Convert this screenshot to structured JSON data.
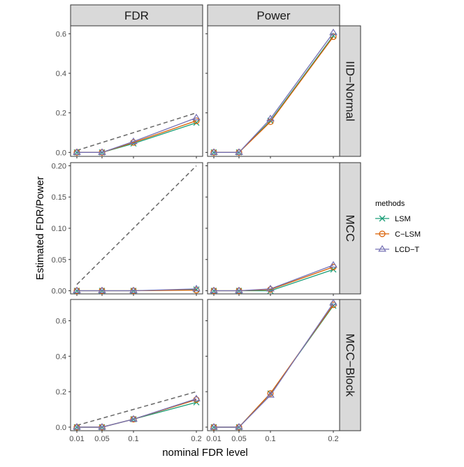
{
  "chart_data": {
    "type": "line",
    "xlabel": "nominal FDR level",
    "ylabel": "Estimated FDR/Power",
    "x": [
      0.01,
      0.05,
      0.1,
      0.2
    ],
    "x_tick_labels": [
      "0.01",
      "0.05",
      "0.1",
      "0.2"
    ],
    "columns": [
      "FDR",
      "Power"
    ],
    "rows": [
      "IID−Normal",
      "MCC",
      "MCC−Block"
    ],
    "legend": {
      "title": "methods",
      "placement": "right",
      "entries": [
        {
          "name": "LSM",
          "color": "#1B9E77",
          "shape": "x-cross"
        },
        {
          "name": "C−LSM",
          "color": "#D95F02",
          "shape": "circle"
        },
        {
          "name": "LCD−T",
          "color": "#7570B3",
          "shape": "triangle"
        }
      ]
    },
    "reference_line": {
      "style": "dashed",
      "color": "#666666",
      "y_equals_x": true,
      "panels": "FDR"
    },
    "row_scales": [
      {
        "ylim": [
          -0.02,
          0.64
        ],
        "yticks": [
          0.0,
          0.2,
          0.4,
          0.6
        ],
        "ytick_labels": [
          "0.0",
          "0.2",
          "0.4",
          "0.6"
        ]
      },
      {
        "ylim": [
          -0.005,
          0.205
        ],
        "yticks": [
          0.0,
          0.05,
          0.1,
          0.15,
          0.2
        ],
        "ytick_labels": [
          "0.00",
          "0.05",
          "0.10",
          "0.15",
          "0.20"
        ]
      },
      {
        "ylim": [
          -0.02,
          0.72
        ],
        "yticks": [
          0.0,
          0.2,
          0.4,
          0.6
        ],
        "ytick_labels": [
          "0.0",
          "0.2",
          "0.4",
          "0.6"
        ]
      }
    ],
    "panels": [
      {
        "row": 0,
        "col": 0,
        "series": [
          {
            "name": "LSM",
            "values": [
              0.0,
              0.0,
              0.045,
              0.15
            ]
          },
          {
            "name": "C−LSM",
            "values": [
              0.0,
              0.0,
              0.05,
              0.16
            ]
          },
          {
            "name": "LCD−T",
            "values": [
              0.0,
              0.0,
              0.055,
              0.175
            ]
          }
        ]
      },
      {
        "row": 0,
        "col": 1,
        "series": [
          {
            "name": "LSM",
            "values": [
              0.0,
              0.0,
              0.16,
              0.59
            ]
          },
          {
            "name": "C−LSM",
            "values": [
              0.0,
              0.0,
              0.155,
              0.585
            ]
          },
          {
            "name": "LCD−T",
            "values": [
              0.0,
              0.0,
              0.17,
              0.605
            ]
          }
        ]
      },
      {
        "row": 1,
        "col": 0,
        "series": [
          {
            "name": "LSM",
            "values": [
              0.0,
              0.0,
              0.0,
              0.002
            ]
          },
          {
            "name": "C−LSM",
            "values": [
              0.0,
              0.0,
              0.0,
              0.001
            ]
          },
          {
            "name": "LCD−T",
            "values": [
              0.0,
              0.0,
              0.0,
              0.003
            ]
          }
        ]
      },
      {
        "row": 1,
        "col": 1,
        "series": [
          {
            "name": "LSM",
            "values": [
              0.0,
              0.0,
              0.0,
              0.034
            ]
          },
          {
            "name": "C−LSM",
            "values": [
              0.0,
              0.0,
              0.002,
              0.038
            ]
          },
          {
            "name": "LCD−T",
            "values": [
              0.0,
              0.0,
              0.003,
              0.041
            ]
          }
        ]
      },
      {
        "row": 2,
        "col": 0,
        "series": [
          {
            "name": "LSM",
            "values": [
              0.0,
              0.0,
              0.045,
              0.14
            ]
          },
          {
            "name": "C−LSM",
            "values": [
              0.0,
              0.0,
              0.045,
              0.155
            ]
          },
          {
            "name": "LCD−T",
            "values": [
              0.0,
              0.0,
              0.045,
              0.16
            ]
          }
        ]
      },
      {
        "row": 2,
        "col": 1,
        "series": [
          {
            "name": "LSM",
            "values": [
              0.0,
              0.0,
              0.19,
              0.685
            ]
          },
          {
            "name": "C−LSM",
            "values": [
              0.0,
              0.0,
              0.19,
              0.69
            ]
          },
          {
            "name": "LCD−T",
            "values": [
              0.0,
              0.0,
              0.18,
              0.7
            ]
          }
        ]
      }
    ]
  }
}
